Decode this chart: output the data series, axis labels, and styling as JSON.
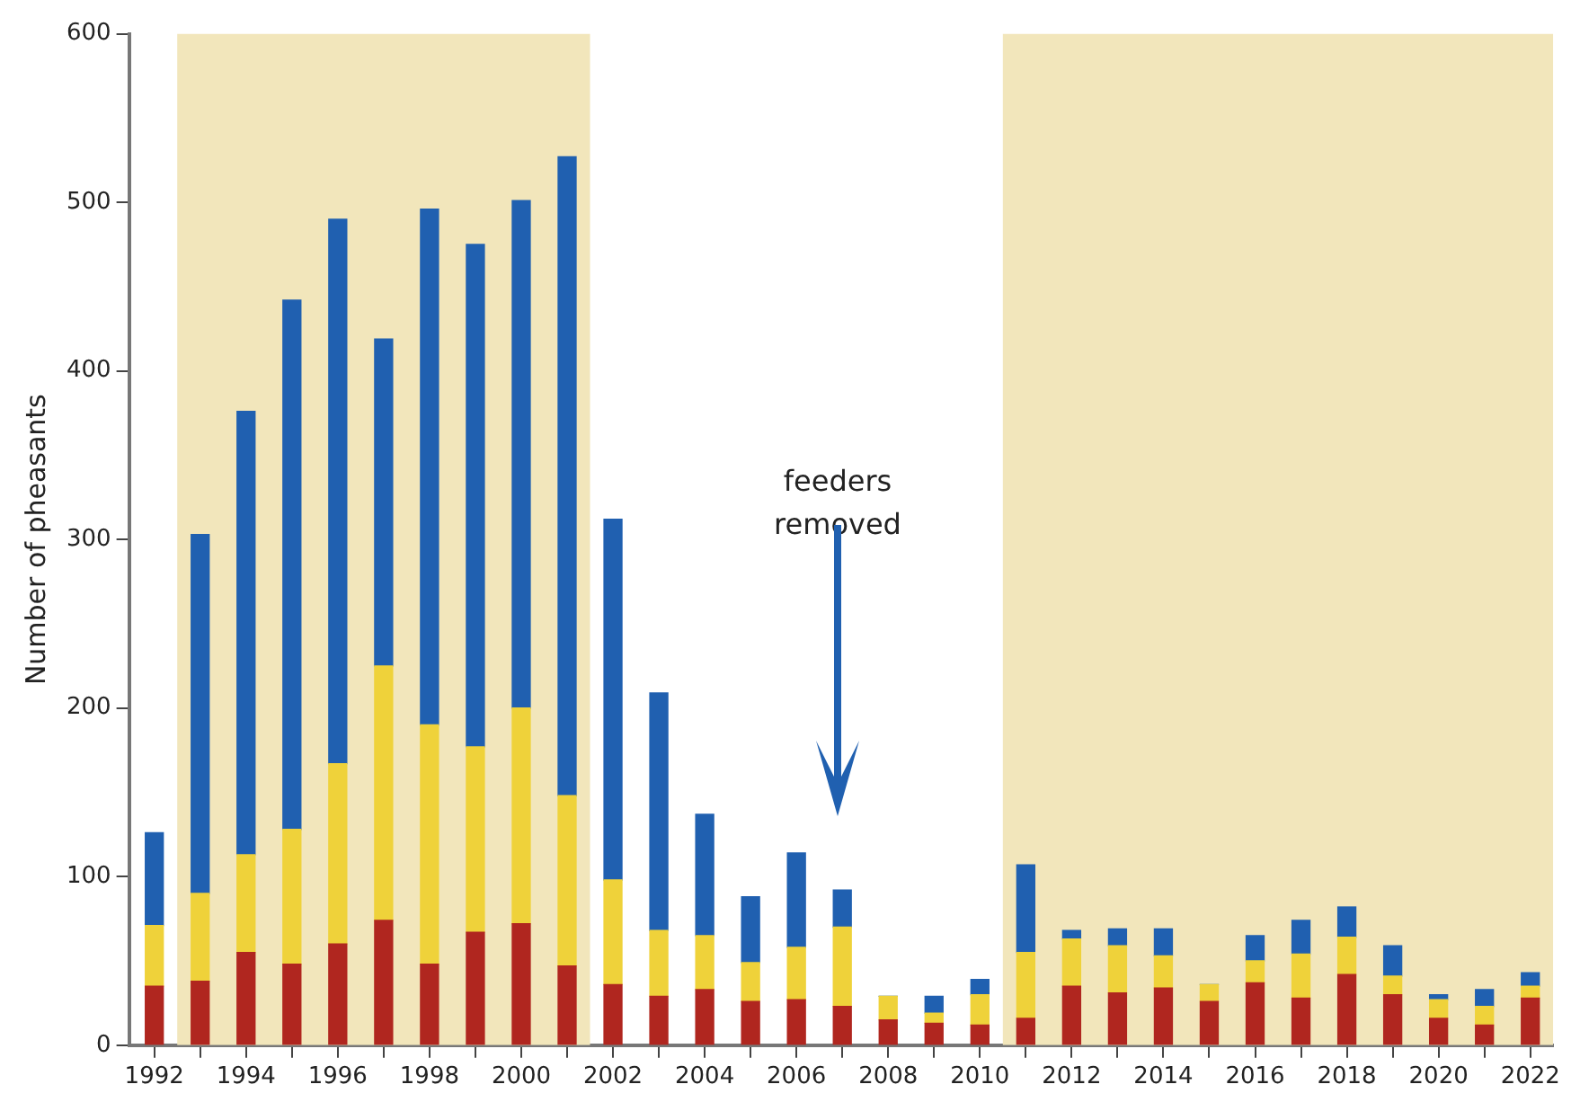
{
  "chart_data": {
    "type": "bar",
    "ylabel": "Number of pheasants",
    "stacked": true,
    "x": [
      1992,
      1993,
      1994,
      1995,
      1996,
      1997,
      1998,
      1999,
      2000,
      2001,
      2002,
      2003,
      2004,
      2005,
      2006,
      2007,
      2008,
      2009,
      2010,
      2011,
      2012,
      2013,
      2014,
      2015,
      2016,
      2017,
      2018,
      2019,
      2020,
      2021,
      2022
    ],
    "series": [
      {
        "color": "#b0261f",
        "values": [
          35,
          38,
          55,
          48,
          60,
          74,
          48,
          67,
          72,
          47,
          36,
          29,
          33,
          26,
          27,
          23,
          15,
          13,
          12,
          16,
          35,
          31,
          34,
          26,
          37,
          28,
          42,
          30,
          16,
          12,
          28
        ]
      },
      {
        "color": "#efd23a",
        "values": [
          36,
          52,
          58,
          80,
          107,
          151,
          142,
          110,
          128,
          101,
          62,
          39,
          32,
          23,
          31,
          47,
          14,
          6,
          18,
          39,
          28,
          28,
          19,
          10,
          13,
          26,
          22,
          11,
          11,
          11,
          7
        ]
      },
      {
        "color": "#2060b0",
        "values": [
          55,
          213,
          263,
          314,
          323,
          194,
          306,
          298,
          301,
          379,
          214,
          141,
          72,
          39,
          56,
          22,
          0,
          10,
          9,
          52,
          5,
          10,
          16,
          0,
          15,
          20,
          18,
          18,
          3,
          10,
          8
        ]
      }
    ],
    "xlim": [
      1991.45,
      2022.5
    ],
    "xticks": [
      1992,
      {
        "value": 1993,
        "label": null
      },
      1994,
      {
        "value": 1995,
        "label": null
      },
      1996,
      {
        "value": 1997,
        "label": null
      },
      1998,
      {
        "value": 1999,
        "label": null
      },
      2000,
      {
        "value": 2001,
        "label": null
      },
      2002,
      {
        "value": 2003,
        "label": null
      },
      2004,
      {
        "value": 2005,
        "label": null
      },
      2006,
      {
        "value": 2007,
        "label": null
      },
      2008,
      {
        "value": 2009,
        "label": null
      },
      2010,
      {
        "value": 2011,
        "label": null
      },
      2012,
      {
        "value": 2013,
        "label": null
      },
      2014,
      {
        "value": 2015,
        "label": null
      },
      2016,
      {
        "value": 2017,
        "label": null
      },
      2018,
      {
        "value": 2019,
        "label": null
      },
      2020,
      {
        "value": 2021,
        "label": null
      },
      2022
    ],
    "ylim": [
      0,
      600
    ],
    "yticks": [
      0,
      100,
      200,
      300,
      400,
      500,
      600
    ],
    "bands": [
      {
        "axis": "x",
        "from": 1992.5,
        "to": 2001.5,
        "color": "#f2e6bb"
      },
      {
        "axis": "x",
        "from": 2010.5,
        "to": 2022.5,
        "color": "#f2e6bb"
      }
    ],
    "annotations": [
      "feeders removed"
    ],
    "grid": false,
    "legend": false
  }
}
